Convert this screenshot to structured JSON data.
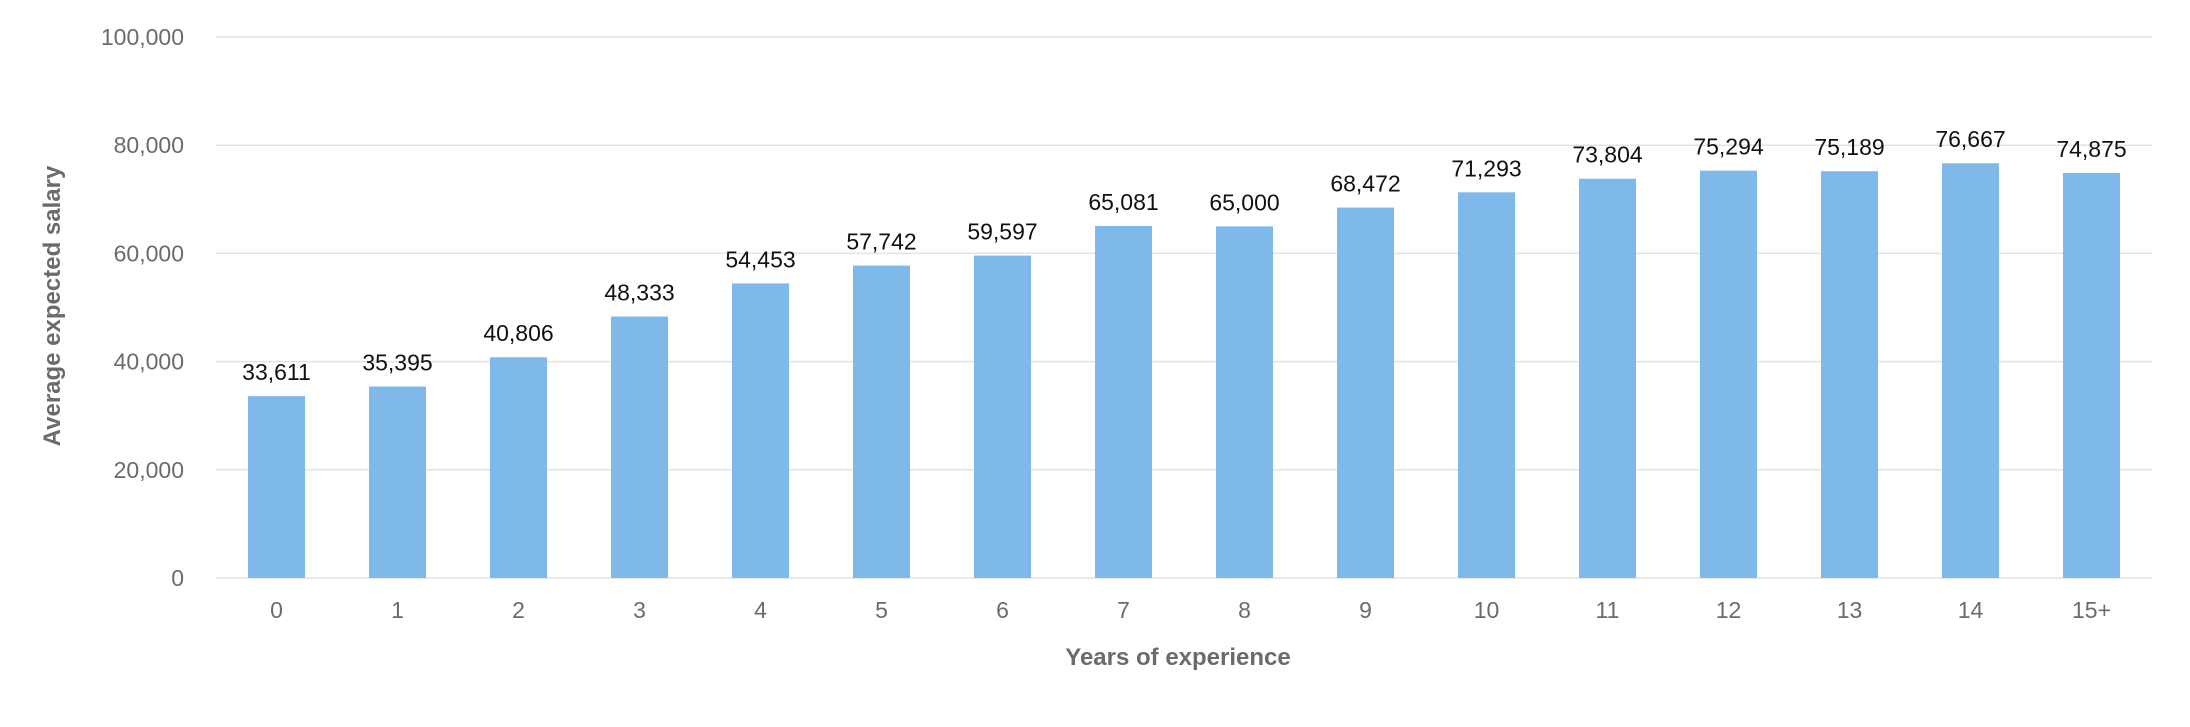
{
  "chart_data": {
    "type": "bar",
    "title": "",
    "xlabel": "Years of experience",
    "ylabel": "Average expected salary",
    "categories": [
      "0",
      "1",
      "2",
      "3",
      "4",
      "5",
      "6",
      "7",
      "8",
      "9",
      "10",
      "11",
      "12",
      "13",
      "14",
      "15+"
    ],
    "values": [
      33611,
      35395,
      40806,
      48333,
      54453,
      57742,
      59597,
      65081,
      65000,
      68472,
      71293,
      73804,
      75294,
      75189,
      76667,
      74875
    ],
    "value_labels": [
      "33,611",
      "35,395",
      "40,806",
      "48,333",
      "54,453",
      "57,742",
      "59,597",
      "65,081",
      "65,000",
      "68,472",
      "71,293",
      "73,804",
      "75,294",
      "75,189",
      "76,667",
      "74,875"
    ],
    "ylim": [
      0,
      100000
    ],
    "yticks": [
      0,
      20000,
      40000,
      60000,
      80000,
      100000
    ],
    "ytick_labels": [
      "0",
      "20,000",
      "40,000",
      "60,000",
      "80,000",
      "100,000"
    ],
    "grid": true,
    "legend": "none",
    "bar_color": "#7fb9ea"
  }
}
